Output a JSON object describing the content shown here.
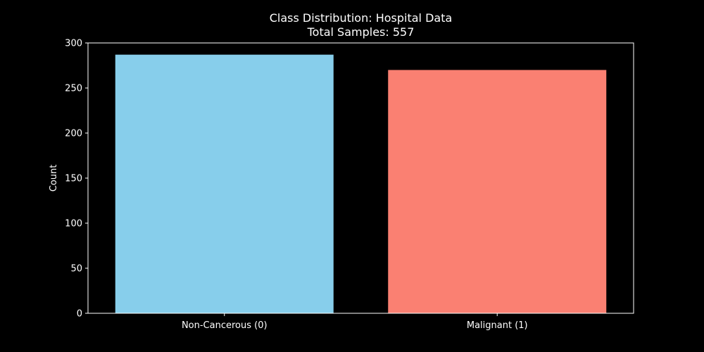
{
  "chart_data": {
    "type": "bar",
    "title": "Class Distribution: Hospital Data",
    "subtitle": "Total Samples: 557",
    "xlabel": "",
    "ylabel": "Count",
    "categories": [
      "Non-Cancerous (0)",
      "Malignant (1)"
    ],
    "values": [
      287,
      270
    ],
    "bar_colors": [
      "#87ceeb",
      "#fa8072"
    ],
    "ylim": [
      0,
      300
    ],
    "yticks": [
      0,
      50,
      100,
      150,
      200,
      250,
      300
    ],
    "grid": false,
    "legend": "none"
  },
  "colors": {
    "background": "#000000",
    "foreground": "#ffffff"
  }
}
